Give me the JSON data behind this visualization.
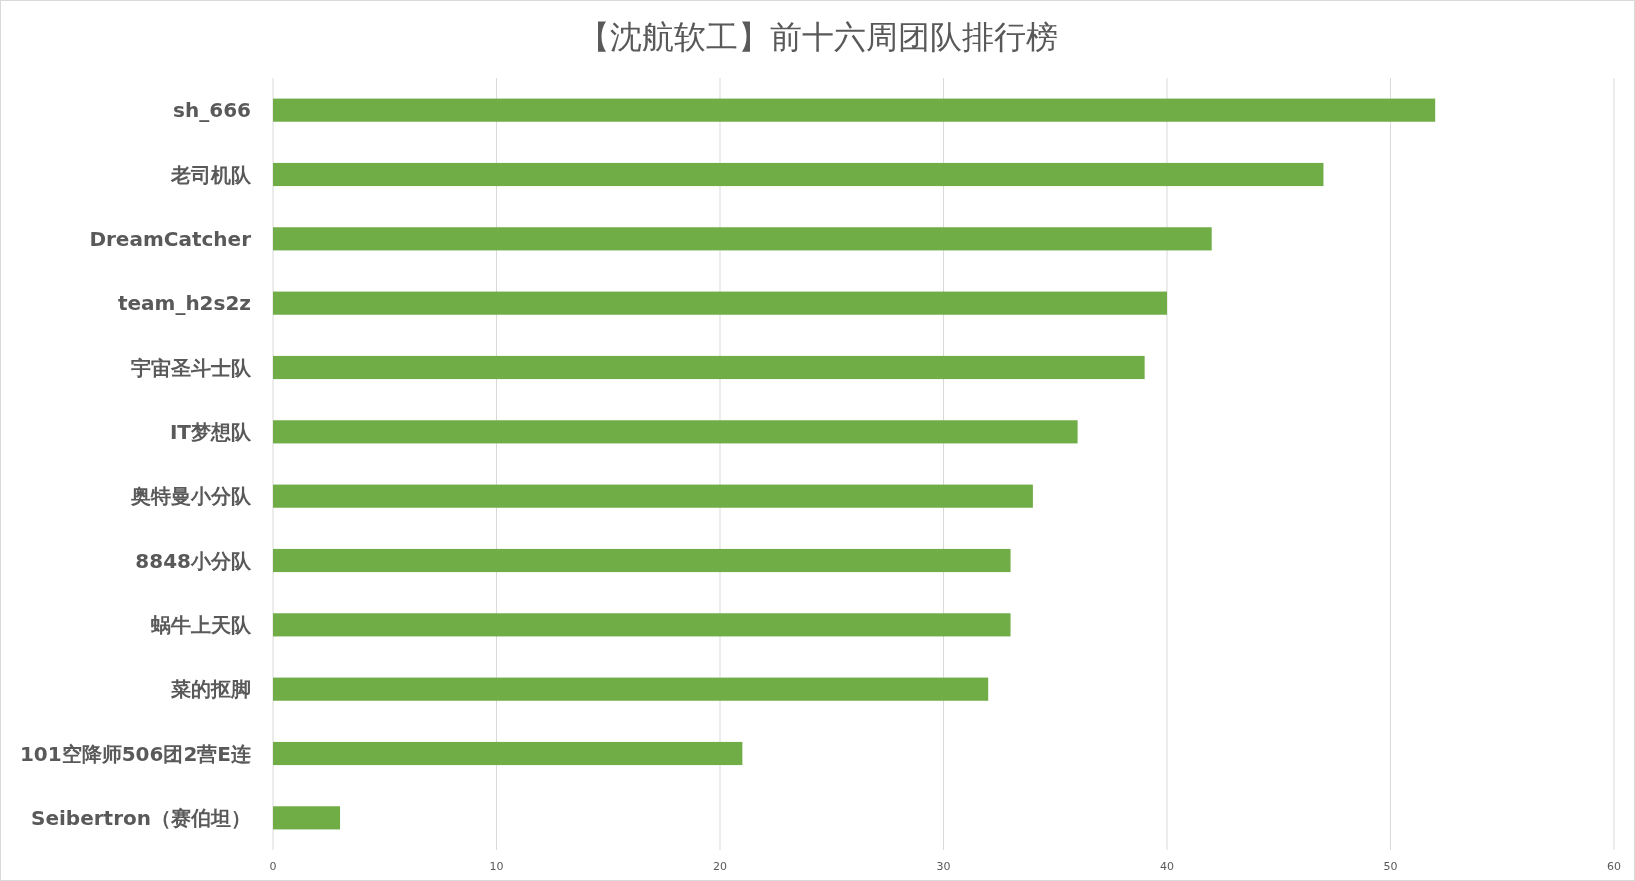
{
  "chart_data": {
    "type": "bar",
    "orientation": "horizontal",
    "title": "【沈航软工】前十六周团队排行榜",
    "categories": [
      "sh_666",
      "老司机队",
      "DreamCatcher",
      "team_h2s2z",
      "宇宙圣斗士队",
      "IT梦想队",
      "奥特曼小分队",
      "8848小分队",
      "蜗牛上天队",
      "菜的抠脚",
      "101空降师506团2营E连",
      "Seibertron（赛伯坦）"
    ],
    "values": [
      52,
      47,
      42,
      40,
      39,
      36,
      34,
      33,
      33,
      32,
      21,
      3
    ],
    "color": "#70ad47",
    "xlim": [
      0,
      60
    ],
    "xticks": [
      0,
      10,
      20,
      30,
      40,
      50,
      60
    ],
    "grid": "x"
  }
}
